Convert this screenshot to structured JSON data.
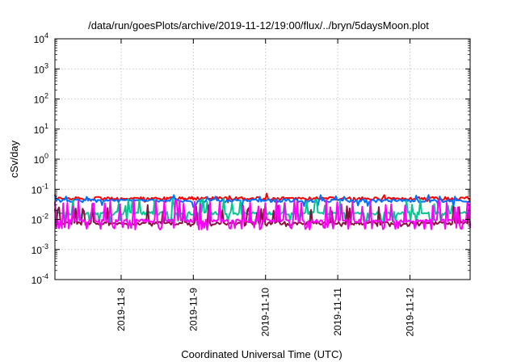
{
  "chart_data": {
    "type": "line",
    "title": "/data/run/goesPlots/archive/2019-11-12/19:00/flux/../bryn/5daysMoon.plot",
    "xlabel": "Coordinated Universal Time (UTC)",
    "ylabel": "cSv/day",
    "yscale": "log",
    "ylim": [
      0.0001,
      10000
    ],
    "y_ticks": [
      {
        "value": 0.0001,
        "base": "10",
        "exp": "-4"
      },
      {
        "value": 0.001,
        "base": "10",
        "exp": "-3"
      },
      {
        "value": 0.01,
        "base": "10",
        "exp": "-2"
      },
      {
        "value": 0.1,
        "base": "10",
        "exp": "-1"
      },
      {
        "value": 1,
        "base": "10",
        "exp": "0"
      },
      {
        "value": 10,
        "base": "10",
        "exp": "1"
      },
      {
        "value": 100,
        "base": "10",
        "exp": "2"
      },
      {
        "value": 1000,
        "base": "10",
        "exp": "3"
      },
      {
        "value": 10000,
        "base": "10",
        "exp": "4"
      }
    ],
    "xlim": [
      "2019-11-07T02:00",
      "2019-11-12T20:00"
    ],
    "x_ticks": [
      {
        "value": "2019-11-08T00:00",
        "label": "2019-11-8"
      },
      {
        "value": "2019-11-09T00:00",
        "label": "2019-11-9"
      },
      {
        "value": "2019-11-10T00:00",
        "label": "2019-11-10"
      },
      {
        "value": "2019-11-11T00:00",
        "label": "2019-11-11"
      },
      {
        "value": "2019-11-12T00:00",
        "label": "2019-11-12"
      }
    ],
    "grid": true,
    "legend": "none",
    "series": [
      {
        "color": "#ff0000",
        "base": 0.05,
        "low": 0.04,
        "high": 0.075,
        "variability": 0.15
      },
      {
        "color": "#0070ff",
        "base": 0.042,
        "low": 0.028,
        "high": 0.065,
        "variability": 0.2
      },
      {
        "color": "#00c890",
        "base": 0.016,
        "low": 0.009,
        "high": 0.05,
        "variability": 0.45
      },
      {
        "color": "#8a1040",
        "base": 0.0075,
        "low": 0.0065,
        "high": 0.03,
        "variability": 0.5
      },
      {
        "color": "#ff00ff",
        "base": 0.009,
        "low": 0.005,
        "high": 0.045,
        "variability": 0.6
      }
    ]
  }
}
